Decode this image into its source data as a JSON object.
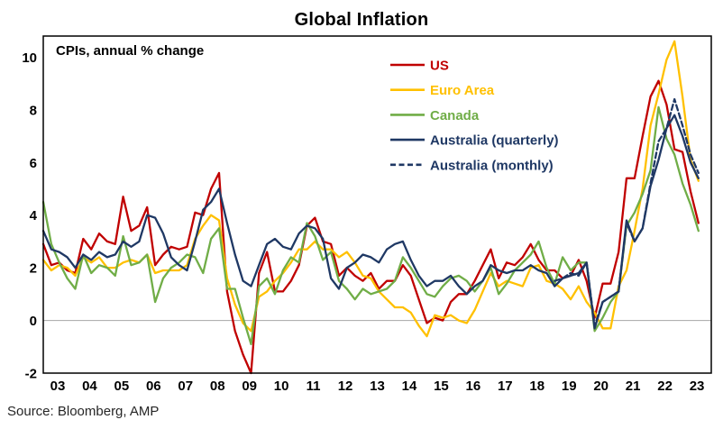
{
  "page_title": "Global Inflation",
  "source": "Source: Bloomberg, AMP",
  "chart_data": {
    "type": "line",
    "title": "Global Inflation",
    "annotation": "CPIs, annual % change",
    "xlabel": "",
    "ylabel": "annual % change",
    "xlim": [
      2003,
      2023.9
    ],
    "ylim": [
      -2,
      10.8
    ],
    "yticks": [
      -2,
      0,
      2,
      4,
      6,
      8,
      10
    ],
    "xticks": [
      {
        "value": 2003,
        "label": "03"
      },
      {
        "value": 2004,
        "label": "04"
      },
      {
        "value": 2005,
        "label": "05"
      },
      {
        "value": 2006,
        "label": "06"
      },
      {
        "value": 2007,
        "label": "07"
      },
      {
        "value": 2008,
        "label": "08"
      },
      {
        "value": 2009,
        "label": "09"
      },
      {
        "value": 2010,
        "label": "10"
      },
      {
        "value": 2011,
        "label": "11"
      },
      {
        "value": 2012,
        "label": "12"
      },
      {
        "value": 2013,
        "label": "13"
      },
      {
        "value": 2014,
        "label": "14"
      },
      {
        "value": 2015,
        "label": "15"
      },
      {
        "value": 2016,
        "label": "16"
      },
      {
        "value": 2017,
        "label": "17"
      },
      {
        "value": 2018,
        "label": "18"
      },
      {
        "value": 2019,
        "label": "19"
      },
      {
        "value": 2020,
        "label": "20"
      },
      {
        "value": 2021,
        "label": "21"
      },
      {
        "value": 2022,
        "label": "22"
      },
      {
        "value": 2023,
        "label": "23"
      }
    ],
    "grid": false,
    "zero_line": true,
    "zero_line_color": "#a6a6a6",
    "border_color": "#000000",
    "legend_position": "inside-upper-center",
    "series": [
      {
        "id": "us",
        "name": "US",
        "color": "#c00000",
        "dashed": false,
        "x_start": 2003.0,
        "x_step": 0.25,
        "values": [
          2.9,
          2.1,
          2.2,
          1.9,
          1.8,
          3.1,
          2.7,
          3.3,
          3.0,
          2.9,
          4.7,
          3.4,
          3.6,
          4.3,
          2.1,
          2.5,
          2.8,
          2.7,
          2.8,
          4.1,
          4.0,
          5.0,
          5.6,
          1.1,
          -0.4,
          -1.3,
          -2.0,
          1.8,
          2.6,
          1.1,
          1.1,
          1.5,
          2.1,
          3.6,
          3.9,
          3.0,
          2.9,
          1.7,
          2.0,
          1.7,
          1.5,
          1.8,
          1.2,
          1.5,
          1.5,
          2.1,
          1.7,
          0.8,
          -0.1,
          0.1,
          0.0,
          0.7,
          1.0,
          1.0,
          1.5,
          2.1,
          2.7,
          1.6,
          2.2,
          2.1,
          2.4,
          2.9,
          2.3,
          1.9,
          1.9,
          1.6,
          1.7,
          2.3,
          1.5,
          0.1,
          1.4,
          1.4,
          2.6,
          5.4,
          5.4,
          7.0,
          8.5,
          9.1,
          8.2,
          6.5,
          6.4,
          4.9,
          3.7
        ]
      },
      {
        "id": "euro_area",
        "name": "Euro Area",
        "color": "#ffc000",
        "dashed": false,
        "x_start": 2003.0,
        "x_step": 0.25,
        "values": [
          2.3,
          1.9,
          2.1,
          2.0,
          1.7,
          2.4,
          2.2,
          2.4,
          2.0,
          2.0,
          2.2,
          2.3,
          2.2,
          2.5,
          1.8,
          1.9,
          1.9,
          1.9,
          2.1,
          3.1,
          3.6,
          4.0,
          3.8,
          1.6,
          0.6,
          -0.1,
          -0.4,
          0.9,
          1.1,
          1.5,
          1.8,
          2.2,
          2.7,
          2.7,
          3.0,
          2.7,
          2.7,
          2.4,
          2.6,
          2.2,
          1.7,
          1.6,
          1.1,
          0.8,
          0.5,
          0.5,
          0.3,
          -0.2,
          -0.6,
          0.2,
          0.1,
          0.2,
          0.0,
          -0.1,
          0.4,
          1.1,
          1.8,
          1.3,
          1.5,
          1.4,
          1.3,
          2.0,
          2.1,
          1.5,
          1.4,
          1.2,
          0.8,
          1.3,
          0.7,
          0.3,
          -0.3,
          -0.3,
          1.3,
          1.9,
          3.4,
          5.0,
          7.4,
          8.6,
          9.9,
          10.6,
          8.5,
          6.1,
          5.3
        ]
      },
      {
        "id": "canada",
        "name": "Canada",
        "color": "#70ad47",
        "dashed": false,
        "x_start": 2003.0,
        "x_step": 0.25,
        "values": [
          4.5,
          2.9,
          2.2,
          1.6,
          1.2,
          2.5,
          1.8,
          2.1,
          2.0,
          1.7,
          3.2,
          2.1,
          2.2,
          2.5,
          0.7,
          1.6,
          2.0,
          2.2,
          2.5,
          2.4,
          1.8,
          3.1,
          3.5,
          1.2,
          1.2,
          0.1,
          -0.9,
          1.3,
          1.6,
          1.0,
          1.9,
          2.4,
          2.2,
          3.7,
          3.2,
          2.3,
          2.6,
          1.5,
          1.2,
          0.8,
          1.2,
          1.0,
          1.1,
          1.2,
          1.5,
          2.4,
          2.0,
          1.5,
          1.0,
          0.9,
          1.3,
          1.6,
          1.7,
          1.5,
          1.1,
          1.5,
          2.0,
          1.0,
          1.4,
          1.9,
          2.2,
          2.5,
          3.0,
          2.0,
          1.4,
          2.4,
          1.9,
          2.2,
          2.2,
          -0.4,
          0.1,
          0.7,
          1.1,
          3.6,
          4.1,
          4.8,
          5.7,
          8.1,
          6.9,
          6.3,
          5.2,
          4.4,
          3.4
        ]
      },
      {
        "id": "australia_quarterly",
        "name": "Australia (quarterly)",
        "color": "#1f3864",
        "dashed": false,
        "x_start": 2003.0,
        "x_step": 0.25,
        "values": [
          3.4,
          2.7,
          2.6,
          2.4,
          2.0,
          2.5,
          2.3,
          2.6,
          2.4,
          2.5,
          3.0,
          2.8,
          3.0,
          4.0,
          3.9,
          3.3,
          2.4,
          2.1,
          1.9,
          3.0,
          4.2,
          4.5,
          5.0,
          3.7,
          2.5,
          1.5,
          1.3,
          2.1,
          2.9,
          3.1,
          2.8,
          2.7,
          3.3,
          3.6,
          3.5,
          3.1,
          1.6,
          1.2,
          2.0,
          2.2,
          2.5,
          2.4,
          2.2,
          2.7,
          2.9,
          3.0,
          2.3,
          1.7,
          1.3,
          1.5,
          1.5,
          1.7,
          1.3,
          1.0,
          1.3,
          1.5,
          2.1,
          1.9,
          1.8,
          1.9,
          1.9,
          2.1,
          1.9,
          1.8,
          1.3,
          1.6,
          1.7,
          1.8,
          2.2,
          -0.3,
          0.7,
          0.9,
          1.1,
          3.8,
          3.0,
          3.5,
          5.1,
          6.1,
          7.3,
          7.8,
          7.0,
          6.0,
          5.4
        ]
      },
      {
        "id": "australia_monthly",
        "name": "Australia (monthly)",
        "color": "#1f3864",
        "dashed": true,
        "x_start": 2019.0,
        "x_step": 0.25,
        "values": [
          1.5,
          1.6,
          1.8,
          1.7,
          2.2,
          -0.2,
          0.7,
          0.9,
          1.1,
          3.7,
          3.0,
          3.5,
          5.2,
          6.8,
          7.3,
          8.4,
          7.4,
          6.3,
          5.6
        ]
      }
    ]
  }
}
